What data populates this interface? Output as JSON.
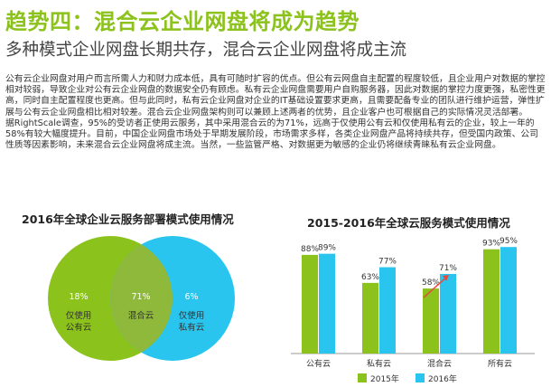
{
  "heading": {
    "title": "趋势四：混合云企业网盘将成为趋势",
    "subtitle": "多种模式企业网盘长期共存，混合云企业网盘将成主流"
  },
  "paragraphs": [
    "公有云企业网盘对用户而言所需人力和财力成本低，具有可随时扩容的优点。但公有云网盘自主配置的程度较低，且企业用户对数据的掌控相对较弱，导致企业对公有云企业网盘的数据安全仍有顾虑。私有云企业网盘需要用户自购服务器，因此对数据的掌控力度更强，私密性更高，同时自主配置程度也更高。但与此同时，私有云企业网盘对企业的IT基础设置要求更高，且需要配备专业的团队进行维护运营，弹性扩展与公有云企业网盘相比相对较差。混合云企业网盘架构则可以兼顾上述两者的优势，且企业客户也可根据自己的实际情况灵活部署。",
    "据RightScale调查，95%的受访者正使用云服务，其中采用混合云的为71%，远高于仅使用公有云和仅使用私有云的企业，较上一年的58%有较大幅度提升。目前，中国企业网盘市场处于早期发展阶段，市场需求多样，各类企业网盘产品将持续共存，但受国内政策、公司性质等因素影响，未来混合云企业网盘将成主流。当然，一些监管严格、对数据更为敏感的企业仍将继续青睐私有云企业网盘。"
  ],
  "venn": {
    "title": "2016年全球企业云服务部署模式使用情况",
    "left": {
      "value": "18%",
      "label_line1": "仅使用",
      "label_line2": "公有云",
      "color": "#8cc21c"
    },
    "center": {
      "value": "71%",
      "label": "混合云"
    },
    "right": {
      "value": "6%",
      "label_line1": "仅使用",
      "label_line2": "私有云",
      "color": "#29c5ef"
    }
  },
  "bar_chart": {
    "title": "2015-2016年全球云服务模式使用情况"
  },
  "chart_data": {
    "type": "bar",
    "title": "2015-2016年全球云服务模式使用情况",
    "categories": [
      "公有云",
      "私有云",
      "混合云",
      "所有云"
    ],
    "series": [
      {
        "name": "2015年",
        "values": [
          88,
          63,
          58,
          93
        ],
        "labels": [
          "88%",
          "63%",
          "58%",
          "93%"
        ],
        "color": "#8cc21c"
      },
      {
        "name": "2016年",
        "values": [
          89,
          77,
          71,
          95
        ],
        "labels": [
          "89%",
          "77%",
          "71%",
          "95%"
        ],
        "color": "#29c5ef"
      }
    ],
    "ylim": [
      0,
      100
    ],
    "grid": false,
    "legend": "bottom",
    "annotation": "red arrow from 混合云 2015年 to 2016年"
  }
}
